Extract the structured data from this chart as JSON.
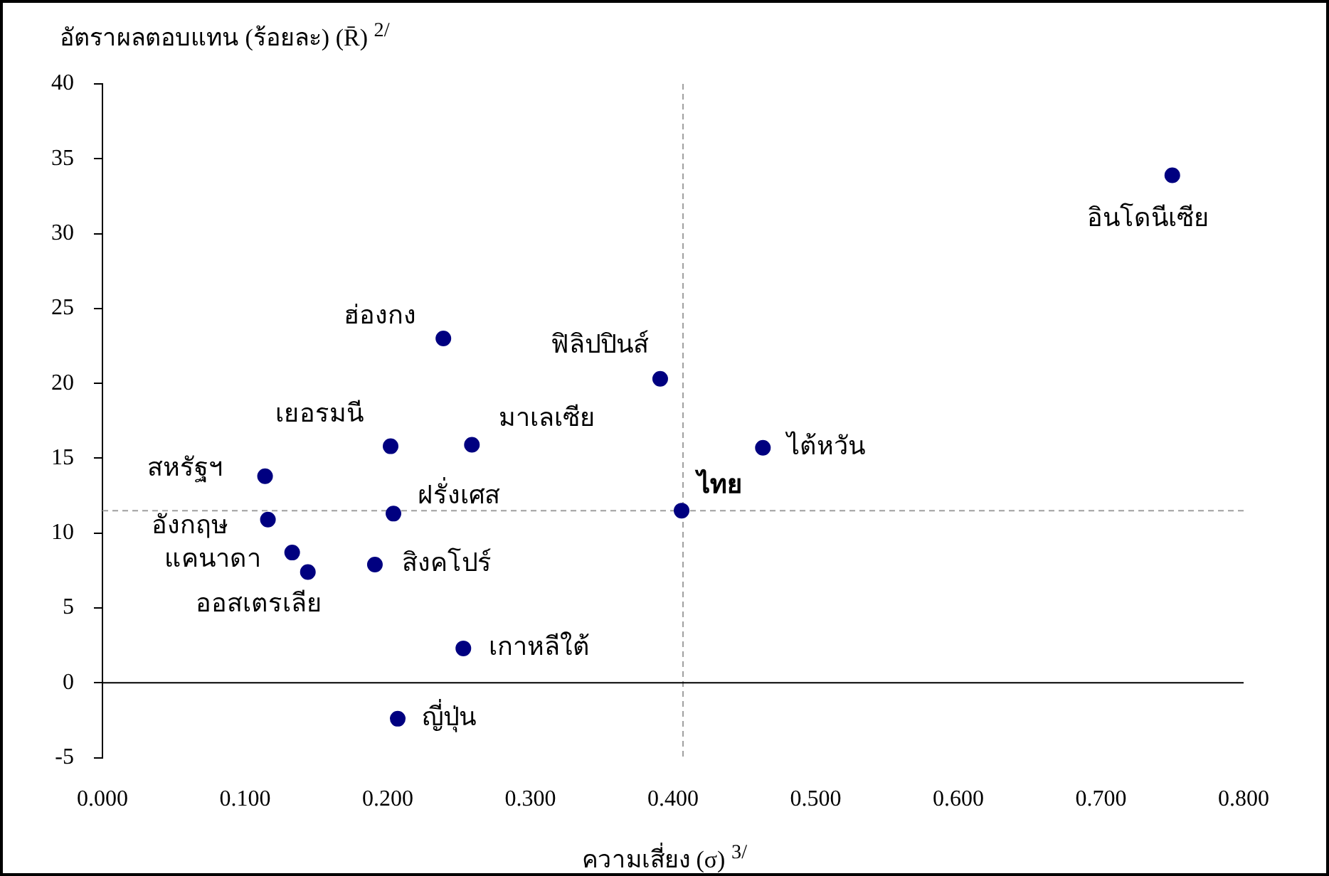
{
  "chart_data": {
    "type": "scatter",
    "ylabel": "อัตราผลตอบแทน (ร้อยละ) (R̄) $^{2/}$",
    "xlabel": "ความเสี่ยง (σ) $^{3/}$",
    "x": [
      0.75,
      0.239,
      0.391,
      0.463,
      0.406,
      0.259,
      0.202,
      0.204,
      0.114,
      0.116,
      0.133,
      0.144,
      0.191,
      0.253,
      0.207
    ],
    "series": [
      {
        "color": "#000080",
        "values": [
          33.9,
          23.0,
          20.3,
          15.7,
          11.5,
          15.9,
          15.8,
          11.3,
          13.8,
          10.9,
          8.7,
          7.4,
          7.9,
          2.3,
          -2.4
        ]
      }
    ],
    "marker": "circle",
    "legend": false,
    "grid": false,
    "xlim": [
      0,
      0.8
    ],
    "xticks": [
      {
        "value": 0,
        "label": "0.000"
      },
      {
        "value": 0.1,
        "label": "0.100"
      },
      {
        "value": 0.2,
        "label": "0.200"
      },
      {
        "value": 0.3,
        "label": "0.300"
      },
      {
        "value": 0.4,
        "label": "0.400"
      },
      {
        "value": 0.5,
        "label": "0.500"
      },
      {
        "value": 0.6,
        "label": "0.600"
      },
      {
        "value": 0.7,
        "label": "0.700"
      },
      {
        "value": 0.8,
        "label": "0.800"
      }
    ],
    "ylim": [
      -5,
      40
    ],
    "yticks": [
      -5,
      0,
      5,
      10,
      15,
      20,
      25,
      30,
      35,
      40
    ],
    "ref_lines": [
      {
        "axis": "y",
        "value": 11.5,
        "color": "#a0a0a0",
        "line_style": "dashed"
      },
      {
        "axis": "x",
        "value": 0.407,
        "color": "#a0a0a0",
        "line_style": "dashed"
      },
      {
        "axis": "y",
        "value": 0,
        "color": "#000000",
        "line_style": "solid"
      }
    ],
    "annotations": [
      {
        "text": "อินโดนีเซีย",
        "x": 0.75,
        "y": 33.9
      },
      {
        "text": "ฮ่องกง",
        "x": 0.239,
        "y": 23.0
      },
      {
        "text": "ฟิลิปปินส์",
        "x": 0.391,
        "y": 20.3
      },
      {
        "text": "ไต้หวัน",
        "x": 0.463,
        "y": 15.7
      },
      {
        "text": "ไทย",
        "x": 0.406,
        "y": 11.5
      },
      {
        "text": "มาเลเซีย",
        "x": 0.259,
        "y": 15.9
      },
      {
        "text": "เยอรมนี",
        "x": 0.202,
        "y": 15.8
      },
      {
        "text": "ฝรั่งเศส",
        "x": 0.204,
        "y": 11.3
      },
      {
        "text": "สหรัฐฯ",
        "x": 0.114,
        "y": 13.8
      },
      {
        "text": "อังกฤษ",
        "x": 0.116,
        "y": 10.9
      },
      {
        "text": "แคนาดา",
        "x": 0.133,
        "y": 8.7
      },
      {
        "text": "ออสเตรเลีย",
        "x": 0.144,
        "y": 7.4
      },
      {
        "text": "สิงคโปร์",
        "x": 0.191,
        "y": 7.9
      },
      {
        "text": "เกาหลีใต้",
        "x": 0.253,
        "y": 2.3
      },
      {
        "text": "ญี่ปุ่น",
        "x": 0.207,
        "y": -2.4
      }
    ]
  }
}
